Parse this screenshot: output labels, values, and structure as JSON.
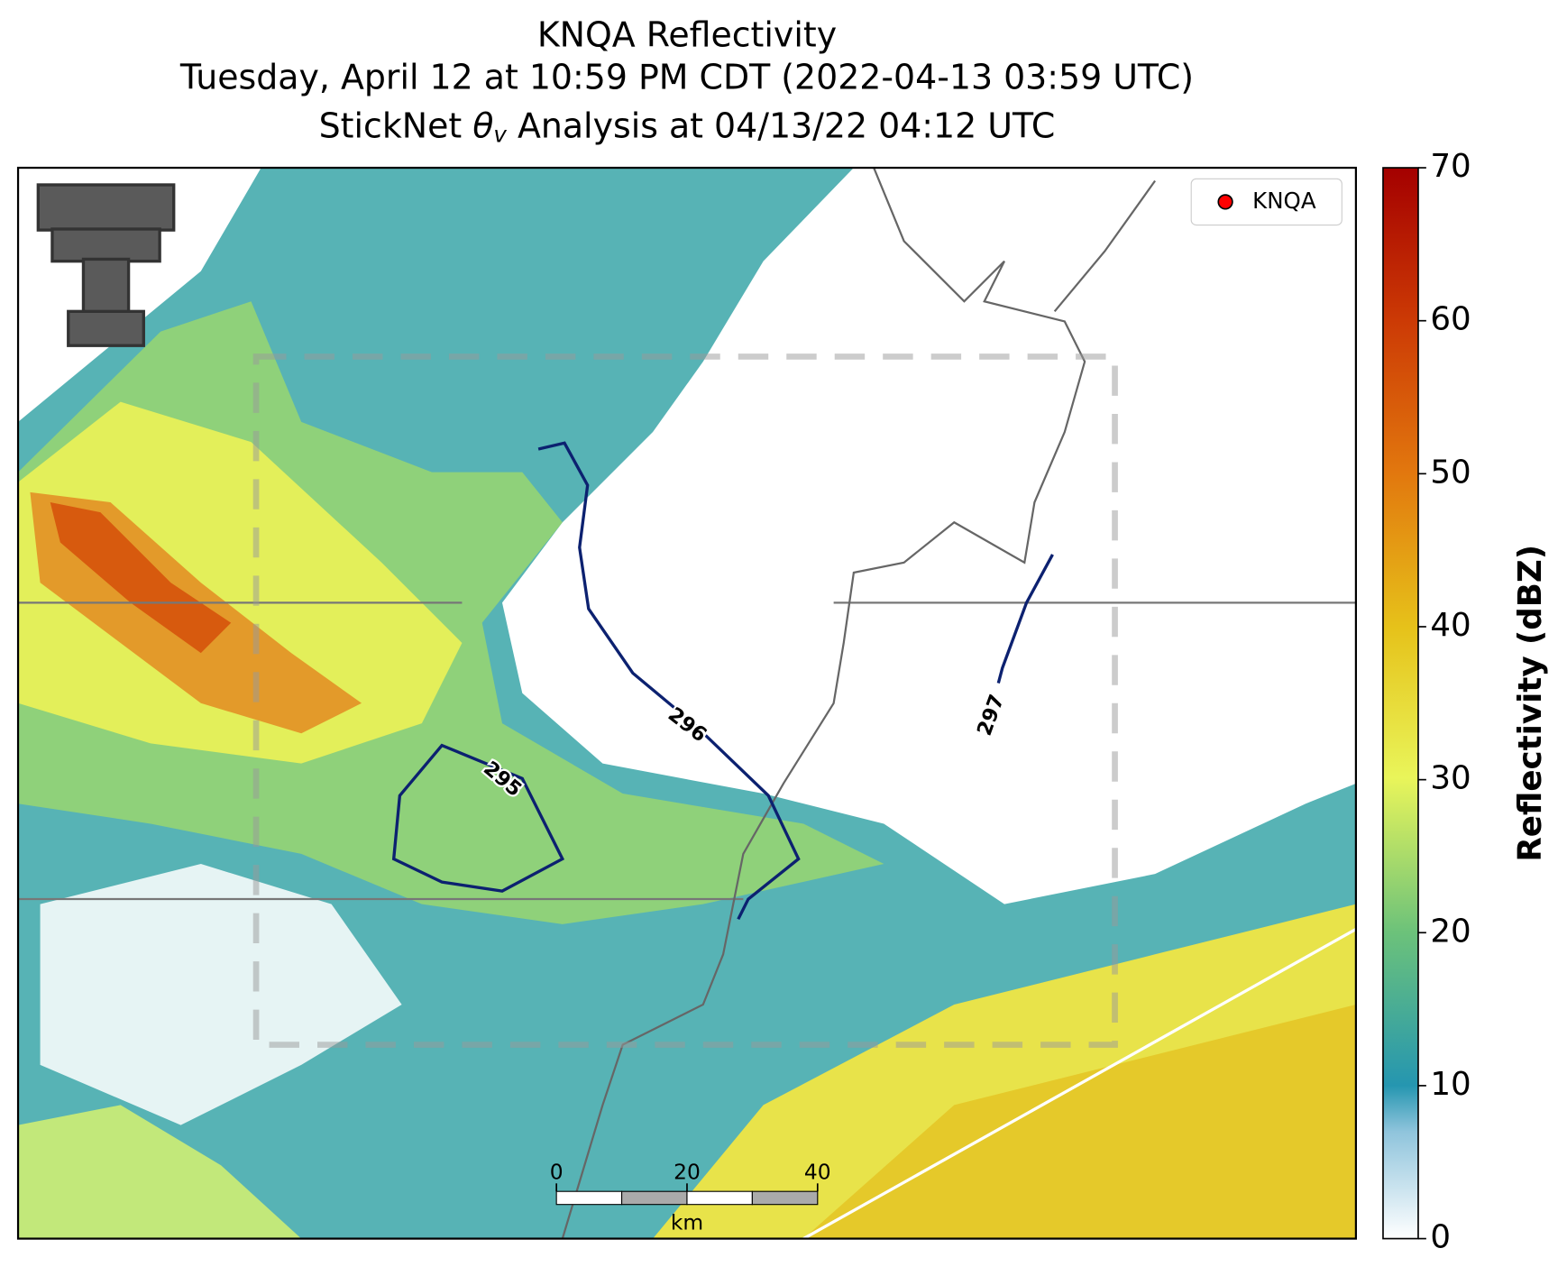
{
  "title": {
    "line1": "KNQA Reflectivity",
    "line2": "Tuesday, April 12 at 10:59 PM CDT (2022-04-13 03:59 UTC)",
    "line3_before": "StickNet ",
    "line3_symbol": "θ",
    "line3_subscript": "v",
    "line3_after": " Analysis at 04/13/22 04:12 UTC"
  },
  "legend": {
    "label": "KNQA",
    "color": "#ff0000",
    "corner": "upper right"
  },
  "colorbar": {
    "label": "Reflectivity (dBZ)",
    "lim": [
      0,
      70
    ],
    "ticks": [
      0,
      10,
      20,
      30,
      40,
      50,
      60,
      70
    ]
  },
  "contours": [
    {
      "label": "295"
    },
    {
      "label": "296"
    },
    {
      "label": "297"
    }
  ],
  "scale_bar": {
    "ticks": [
      0,
      20,
      40
    ],
    "unit": "km"
  }
}
